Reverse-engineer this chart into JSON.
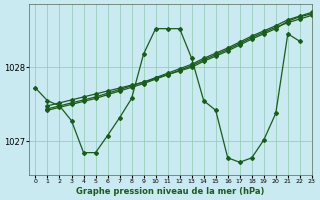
{
  "bg_color": "#c8eaf0",
  "grid_color": "#90c8b0",
  "line_color": "#1a5c1a",
  "title": "Graphe pression niveau de la mer (hPa)",
  "xlim": [
    -0.5,
    23
  ],
  "ylim": [
    1026.55,
    1028.85
  ],
  "yticks": [
    1027,
    1028
  ],
  "xticks": [
    0,
    1,
    2,
    3,
    4,
    5,
    6,
    7,
    8,
    9,
    10,
    11,
    12,
    13,
    14,
    15,
    16,
    17,
    18,
    19,
    20,
    21,
    22,
    23
  ],
  "linear1_x": [
    1,
    2,
    3,
    4,
    5,
    6,
    7,
    8,
    9,
    10,
    11,
    12,
    13,
    14,
    15,
    16,
    17,
    18,
    19,
    20,
    21,
    22,
    23
  ],
  "linear1_y": [
    1027.48,
    1027.52,
    1027.56,
    1027.6,
    1027.64,
    1027.68,
    1027.72,
    1027.76,
    1027.8,
    1027.85,
    1027.9,
    1027.95,
    1028.0,
    1028.08,
    1028.15,
    1028.22,
    1028.3,
    1028.38,
    1028.45,
    1028.52,
    1028.62,
    1028.68,
    1028.72
  ],
  "linear2_x": [
    1,
    2,
    3,
    4,
    5,
    6,
    7,
    8,
    9,
    10,
    11,
    12,
    13,
    14,
    15,
    16,
    17,
    18,
    19,
    20,
    21,
    22,
    23
  ],
  "linear2_y": [
    1027.42,
    1027.46,
    1027.5,
    1027.54,
    1027.58,
    1027.63,
    1027.68,
    1027.73,
    1027.78,
    1027.84,
    1027.9,
    1027.96,
    1028.02,
    1028.1,
    1028.17,
    1028.24,
    1028.32,
    1028.4,
    1028.47,
    1028.54,
    1028.6,
    1028.65,
    1028.7
  ],
  "linear3_x": [
    1,
    2,
    3,
    4,
    5,
    6,
    7,
    8,
    9,
    10,
    11,
    12,
    13,
    14,
    15,
    16,
    17,
    18,
    19,
    20,
    21,
    22,
    23
  ],
  "linear3_y": [
    1027.44,
    1027.48,
    1027.52,
    1027.56,
    1027.6,
    1027.65,
    1027.7,
    1027.75,
    1027.8,
    1027.86,
    1027.92,
    1027.98,
    1028.04,
    1028.12,
    1028.19,
    1028.26,
    1028.34,
    1028.42,
    1028.49,
    1028.56,
    1028.64,
    1028.69,
    1028.74
  ],
  "wavy_x": [
    0,
    1,
    2,
    3,
    4,
    5,
    6,
    7,
    8,
    9,
    10,
    11,
    12,
    13,
    14,
    15,
    16,
    17,
    18,
    19,
    20,
    21,
    22
  ],
  "wavy_y": [
    1027.72,
    1027.55,
    1027.48,
    1027.28,
    1026.85,
    1026.85,
    1027.08,
    1027.32,
    1027.58,
    1028.18,
    1028.52,
    1028.52,
    1028.52,
    1028.12,
    1027.55,
    1027.42,
    1026.78,
    1026.72,
    1026.78,
    1027.02,
    1027.38,
    1028.45,
    1028.35
  ]
}
